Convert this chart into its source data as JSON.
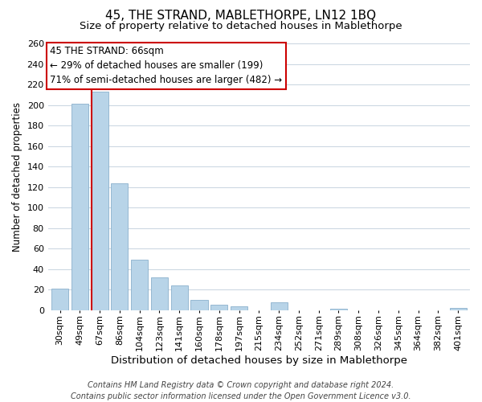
{
  "title": "45, THE STRAND, MABLETHORPE, LN12 1BQ",
  "subtitle": "Size of property relative to detached houses in Mablethorpe",
  "xlabel": "Distribution of detached houses by size in Mablethorpe",
  "ylabel": "Number of detached properties",
  "categories": [
    "30sqm",
    "49sqm",
    "67sqm",
    "86sqm",
    "104sqm",
    "123sqm",
    "141sqm",
    "160sqm",
    "178sqm",
    "197sqm",
    "215sqm",
    "234sqm",
    "252sqm",
    "271sqm",
    "289sqm",
    "308sqm",
    "326sqm",
    "345sqm",
    "364sqm",
    "382sqm",
    "401sqm"
  ],
  "values": [
    21,
    201,
    213,
    124,
    49,
    32,
    24,
    10,
    5,
    4,
    0,
    8,
    0,
    0,
    1,
    0,
    0,
    0,
    0,
    0,
    2
  ],
  "bar_color": "#b8d4e8",
  "bar_edgecolor": "#8ab0cc",
  "highlight_index": 2,
  "highlight_line_color": "#cc0000",
  "annotation_line1": "45 THE STRAND: 66sqm",
  "annotation_line2": "← 29% of detached houses are smaller (199)",
  "annotation_line3": "71% of semi-detached houses are larger (482) →",
  "annotation_box_edgecolor": "#cc0000",
  "annotation_box_facecolor": "#ffffff",
  "ylim": [
    0,
    260
  ],
  "yticks": [
    0,
    20,
    40,
    60,
    80,
    100,
    120,
    140,
    160,
    180,
    200,
    220,
    240,
    260
  ],
  "footnote_line1": "Contains HM Land Registry data © Crown copyright and database right 2024.",
  "footnote_line2": "Contains public sector information licensed under the Open Government Licence v3.0.",
  "background_color": "#ffffff",
  "grid_color": "#c8d4e0",
  "title_fontsize": 11,
  "subtitle_fontsize": 9.5,
  "xlabel_fontsize": 9.5,
  "ylabel_fontsize": 8.5,
  "tick_fontsize": 8,
  "annotation_fontsize": 8.5,
  "footnote_fontsize": 7
}
